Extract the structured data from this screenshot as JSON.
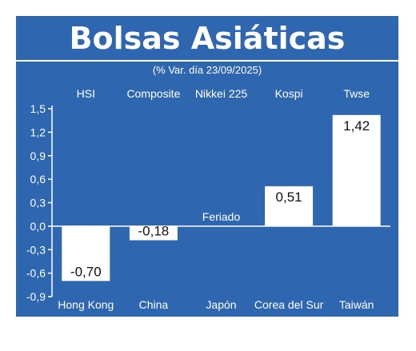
{
  "title": "Bolsas Asiáticas",
  "subtitle": "(% Var. día  23/09/2025)",
  "colors": {
    "panel": "#2e66b0",
    "bar": "#ffffff",
    "text": "#ffffff",
    "label_text": "#111111"
  },
  "chart_data": {
    "type": "bar",
    "categories": [
      "Hong Kong",
      "China",
      "Japón",
      "Corea del Sur",
      "Taiwán"
    ],
    "index_names": [
      "HSI",
      "Composite",
      "Nikkei 225",
      "Kospi",
      "Twse"
    ],
    "values": [
      -0.7,
      -0.18,
      null,
      0.51,
      1.42
    ],
    "data_labels": [
      "-0,70",
      "-0,18",
      "Feriado",
      "0,51",
      "1,42"
    ],
    "yticks": [
      "1,5",
      "1,2",
      "0,9",
      "0,6",
      "0,3",
      "0,0",
      "-0,3",
      "-0,6",
      "-0,9"
    ],
    "ytick_values": [
      1.5,
      1.2,
      0.9,
      0.6,
      0.3,
      0.0,
      -0.3,
      -0.6,
      -0.9
    ],
    "ylim": [
      -0.9,
      1.5
    ],
    "grid": false
  }
}
